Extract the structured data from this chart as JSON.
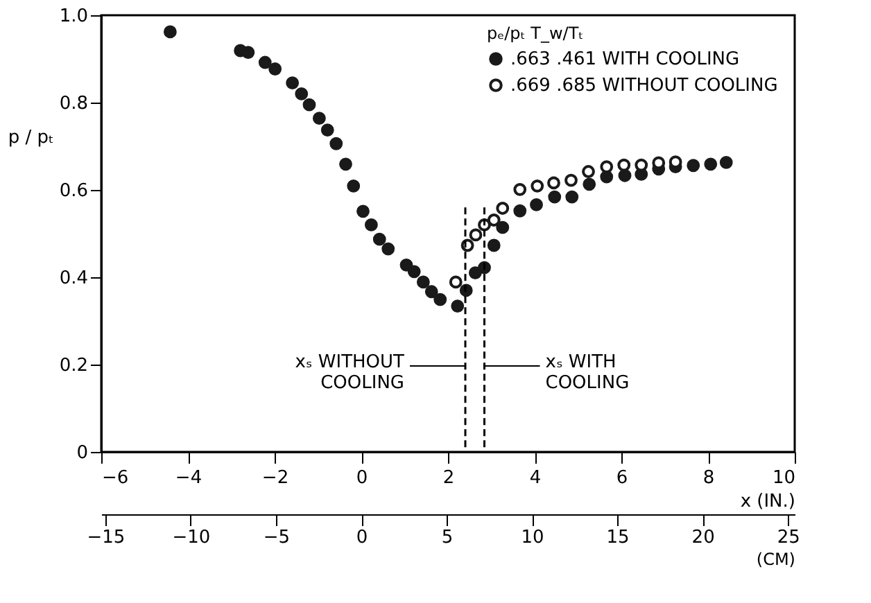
{
  "chart_data": {
    "type": "scatter",
    "xlabel": "x (IN.)",
    "ylabel": "p / pₜ",
    "x2label": "(CM)",
    "legend_title": "pₑ/pₜ  T_w/Tₜ",
    "xlim": [
      -6,
      10
    ],
    "xticks": [
      -6,
      -4,
      -2,
      0,
      2,
      4,
      6,
      8,
      10
    ],
    "x2lim": [
      -15.24,
      25.4
    ],
    "x2ticks": [
      -15,
      -10,
      -5,
      0,
      5,
      10,
      15,
      20,
      25
    ],
    "ylim": [
      0,
      1
    ],
    "yticks": [
      {
        "value": 0,
        "label": "0"
      },
      0.2,
      0.4,
      0.6,
      0.8,
      {
        "value": 1,
        "label": "1.0"
      }
    ],
    "grid": false,
    "legend": "top right",
    "marker": "circle",
    "ref_lines": [
      {
        "axis": "x",
        "value": 2.4,
        "label": "xₛ WITHOUT COOLING",
        "line_style": "dashed"
      },
      {
        "axis": "x",
        "value": 2.84,
        "label": "xₛ WITH COOLING",
        "line_style": "dashed"
      }
    ],
    "series": [
      {
        "name": ".663 .461  WITH COOLING",
        "color": "#1a1a1a",
        "x": [
          -4.41,
          -2.79,
          -2.61,
          -2.22,
          -1.99,
          -1.59,
          -1.38,
          -1.2,
          -0.97,
          -0.78,
          -0.58,
          -0.36,
          -0.18,
          0.04,
          0.23,
          0.42,
          0.62,
          1.04,
          1.22,
          1.43,
          1.62,
          1.82,
          2.22,
          2.42,
          2.63,
          2.84,
          3.06,
          3.26,
          3.66,
          4.04,
          4.46,
          4.86,
          5.26,
          5.66,
          6.08,
          6.46,
          6.86,
          7.25,
          7.66,
          8.06,
          8.42
        ],
        "values": [
          0.962,
          0.919,
          0.915,
          0.892,
          0.877,
          0.845,
          0.82,
          0.795,
          0.764,
          0.737,
          0.706,
          0.659,
          0.609,
          0.551,
          0.52,
          0.487,
          0.465,
          0.428,
          0.413,
          0.389,
          0.367,
          0.349,
          0.334,
          0.37,
          0.41,
          0.422,
          0.473,
          0.514,
          0.552,
          0.566,
          0.584,
          0.584,
          0.613,
          0.63,
          0.633,
          0.636,
          0.648,
          0.653,
          0.656,
          0.659,
          0.663
        ]
      },
      {
        "name": ".669 .685  WITHOUT COOLING",
        "color": "#1a1a1a",
        "x": [
          2.18,
          2.45,
          2.64,
          2.84,
          3.06,
          3.26,
          3.66,
          4.06,
          4.44,
          4.84,
          5.24,
          5.66,
          6.06,
          6.46,
          6.86,
          7.25
        ],
        "values": [
          0.389,
          0.473,
          0.497,
          0.52,
          0.531,
          0.558,
          0.601,
          0.609,
          0.616,
          0.622,
          0.642,
          0.653,
          0.657,
          0.657,
          0.662,
          0.664
        ]
      }
    ]
  }
}
